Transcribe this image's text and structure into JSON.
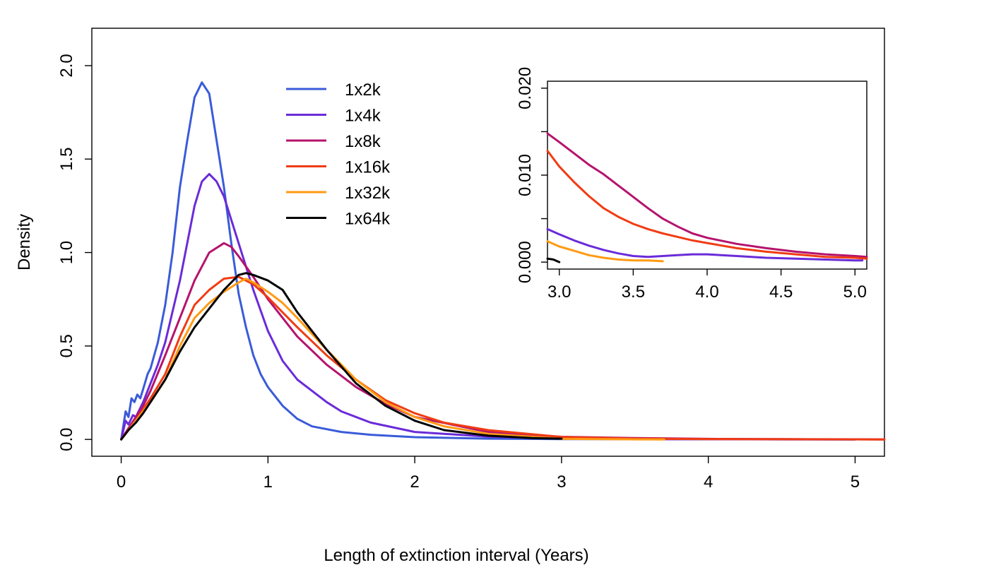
{
  "chart_data": [
    {
      "type": "line",
      "xlabel": "Length of extinction interval (Years)",
      "ylabel": "Density",
      "xlim": [
        -0.2,
        5.2
      ],
      "ylim": [
        -0.09,
        2.2
      ],
      "x_ticks": [
        0,
        1,
        2,
        3,
        4,
        5
      ],
      "x_tick_labels": [
        "0",
        "1",
        "2",
        "3",
        "4",
        "5"
      ],
      "y_ticks": [
        0,
        0.5,
        1,
        1.5,
        2
      ],
      "y_tick_labels": [
        "0.0",
        "0.5",
        "1.0",
        "1.5",
        "2.0"
      ],
      "grid": false,
      "legend_position": "top-center",
      "series": [
        {
          "name": "1x2k",
          "color": "#3a5bd9",
          "x": [
            0,
            0.03,
            0.05,
            0.07,
            0.09,
            0.11,
            0.13,
            0.15,
            0.18,
            0.2,
            0.25,
            0.3,
            0.35,
            0.4,
            0.45,
            0.5,
            0.55,
            0.6,
            0.65,
            0.7,
            0.75,
            0.8,
            0.85,
            0.9,
            0.95,
            1.0,
            1.1,
            1.2,
            1.3,
            1.5,
            1.7,
            2.0,
            2.5,
            3.0,
            4.0,
            5.0
          ],
          "y": [
            0,
            0.15,
            0.12,
            0.22,
            0.2,
            0.24,
            0.22,
            0.27,
            0.35,
            0.38,
            0.52,
            0.72,
            1.0,
            1.35,
            1.6,
            1.83,
            1.91,
            1.85,
            1.6,
            1.35,
            1.05,
            0.78,
            0.6,
            0.45,
            0.35,
            0.28,
            0.18,
            0.11,
            0.07,
            0.04,
            0.025,
            0.012,
            0.004,
            0.002,
            0.001,
            0.0
          ]
        },
        {
          "name": "1x4k",
          "color": "#6a2bd9",
          "x": [
            0,
            0.03,
            0.05,
            0.08,
            0.1,
            0.15,
            0.2,
            0.25,
            0.3,
            0.4,
            0.5,
            0.55,
            0.6,
            0.65,
            0.7,
            0.8,
            0.9,
            1.0,
            1.1,
            1.2,
            1.3,
            1.4,
            1.5,
            1.7,
            2.0,
            2.5,
            3.0,
            3.5,
            4.0,
            4.5,
            5.0
          ],
          "y": [
            0,
            0.1,
            0.08,
            0.13,
            0.12,
            0.2,
            0.3,
            0.4,
            0.52,
            0.85,
            1.25,
            1.38,
            1.42,
            1.38,
            1.3,
            1.05,
            0.8,
            0.58,
            0.42,
            0.32,
            0.26,
            0.2,
            0.15,
            0.09,
            0.04,
            0.015,
            0.004,
            0.001,
            0.001,
            0.0005,
            0.0
          ]
        },
        {
          "name": "1x8k",
          "color": "#b5136d",
          "x": [
            0,
            0.05,
            0.1,
            0.15,
            0.2,
            0.3,
            0.4,
            0.5,
            0.6,
            0.7,
            0.75,
            0.8,
            0.9,
            1.0,
            1.2,
            1.4,
            1.6,
            1.8,
            2.0,
            2.5,
            3.0,
            3.5,
            4.0,
            4.5,
            5.0,
            5.2
          ],
          "y": [
            0,
            0.06,
            0.12,
            0.18,
            0.26,
            0.45,
            0.65,
            0.85,
            1.0,
            1.05,
            1.03,
            0.98,
            0.87,
            0.75,
            0.55,
            0.4,
            0.28,
            0.19,
            0.12,
            0.04,
            0.014,
            0.007,
            0.003,
            0.0015,
            0.0007,
            0.0
          ]
        },
        {
          "name": "1x16k",
          "color": "#f03c14",
          "x": [
            0,
            0.05,
            0.1,
            0.15,
            0.2,
            0.3,
            0.4,
            0.5,
            0.6,
            0.7,
            0.8,
            0.9,
            1.0,
            1.2,
            1.4,
            1.6,
            1.8,
            2.0,
            2.2,
            2.5,
            3.0,
            3.5,
            4.0,
            4.5,
            5.0,
            5.2
          ],
          "y": [
            0,
            0.05,
            0.1,
            0.16,
            0.22,
            0.35,
            0.55,
            0.72,
            0.8,
            0.86,
            0.87,
            0.83,
            0.76,
            0.6,
            0.45,
            0.32,
            0.21,
            0.14,
            0.09,
            0.05,
            0.013,
            0.004,
            0.002,
            0.001,
            0.0005,
            0.0
          ]
        },
        {
          "name": "1x32k",
          "color": "#ff9a12",
          "x": [
            0,
            0.05,
            0.1,
            0.15,
            0.2,
            0.3,
            0.4,
            0.5,
            0.6,
            0.7,
            0.8,
            0.85,
            0.9,
            1.0,
            1.1,
            1.2,
            1.4,
            1.6,
            1.8,
            2.0,
            2.2,
            2.5,
            3.0,
            3.5,
            3.7
          ],
          "y": [
            0,
            0.05,
            0.1,
            0.15,
            0.2,
            0.32,
            0.5,
            0.65,
            0.73,
            0.79,
            0.84,
            0.86,
            0.84,
            0.79,
            0.73,
            0.65,
            0.48,
            0.32,
            0.2,
            0.12,
            0.07,
            0.03,
            0.003,
            0.0005,
            0.0001
          ]
        },
        {
          "name": "1x64k",
          "color": "#000000",
          "x": [
            0,
            0.05,
            0.1,
            0.15,
            0.2,
            0.3,
            0.4,
            0.5,
            0.6,
            0.7,
            0.8,
            0.85,
            0.9,
            1.0,
            1.1,
            1.2,
            1.4,
            1.6,
            1.8,
            2.0,
            2.2,
            2.5,
            2.8,
            3.0
          ],
          "y": [
            0,
            0.05,
            0.09,
            0.14,
            0.2,
            0.32,
            0.47,
            0.6,
            0.7,
            0.8,
            0.88,
            0.89,
            0.88,
            0.85,
            0.8,
            0.68,
            0.48,
            0.3,
            0.18,
            0.1,
            0.05,
            0.02,
            0.007,
            0.004
          ]
        }
      ]
    },
    {
      "type": "line",
      "xlabel": "",
      "ylabel": "",
      "xlim": [
        2.92,
        5.08
      ],
      "ylim": [
        -0.0008,
        0.0208
      ],
      "x_ticks": [
        3.0,
        3.5,
        4.0,
        4.5,
        5.0
      ],
      "x_tick_labels": [
        "3.0",
        "3.5",
        "4.0",
        "4.5",
        "5.0"
      ],
      "y_ticks": [
        0,
        0.005,
        0.01,
        0.015,
        0.02
      ],
      "y_tick_labels": [
        "0.000",
        "",
        "0.010",
        "",
        "0.020"
      ],
      "grid": false,
      "series": [
        {
          "name": "1x4k",
          "color": "#6a2bd9",
          "x": [
            2.92,
            3.0,
            3.1,
            3.2,
            3.3,
            3.4,
            3.5,
            3.6,
            3.7,
            3.8,
            3.9,
            4.0,
            4.2,
            4.4,
            4.6,
            4.8,
            5.0,
            5.05
          ],
          "y": [
            0.0038,
            0.0032,
            0.0025,
            0.0019,
            0.0014,
            0.001,
            0.0007,
            0.0006,
            0.0007,
            0.0008,
            0.0009,
            0.0009,
            0.0007,
            0.0005,
            0.0004,
            0.0003,
            0.0002,
            0.0002
          ]
        },
        {
          "name": "1x8k",
          "color": "#b5136d",
          "x": [
            2.92,
            3.0,
            3.1,
            3.2,
            3.3,
            3.4,
            3.5,
            3.6,
            3.7,
            3.8,
            3.9,
            4.0,
            4.2,
            4.4,
            4.6,
            4.8,
            5.0,
            5.08
          ],
          "y": [
            0.0148,
            0.0138,
            0.0125,
            0.0112,
            0.0101,
            0.0088,
            0.0075,
            0.0062,
            0.005,
            0.0041,
            0.0033,
            0.0028,
            0.0021,
            0.0016,
            0.0012,
            0.0009,
            0.0007,
            0.0006
          ]
        },
        {
          "name": "1x16k",
          "color": "#f03c14",
          "x": [
            2.92,
            3.0,
            3.1,
            3.2,
            3.3,
            3.4,
            3.5,
            3.6,
            3.7,
            3.8,
            3.9,
            4.0,
            4.2,
            4.4,
            4.6,
            4.8,
            5.0,
            5.08
          ],
          "y": [
            0.0128,
            0.011,
            0.0092,
            0.0076,
            0.0062,
            0.0052,
            0.0044,
            0.0038,
            0.0033,
            0.0029,
            0.0025,
            0.0022,
            0.0016,
            0.0012,
            0.0009,
            0.0006,
            0.0005,
            0.0004
          ]
        },
        {
          "name": "1x32k",
          "color": "#ff9a12",
          "x": [
            2.92,
            3.0,
            3.1,
            3.2,
            3.3,
            3.4,
            3.5,
            3.6,
            3.7
          ],
          "y": [
            0.0024,
            0.0018,
            0.0013,
            0.0008,
            0.0005,
            0.0003,
            0.0002,
            0.0002,
            0.0001
          ]
        },
        {
          "name": "1x64k",
          "color": "#000000",
          "x": [
            2.92,
            2.96,
            3.0
          ],
          "y": [
            0.0004,
            0.0003,
            0.0
          ]
        }
      ]
    }
  ]
}
